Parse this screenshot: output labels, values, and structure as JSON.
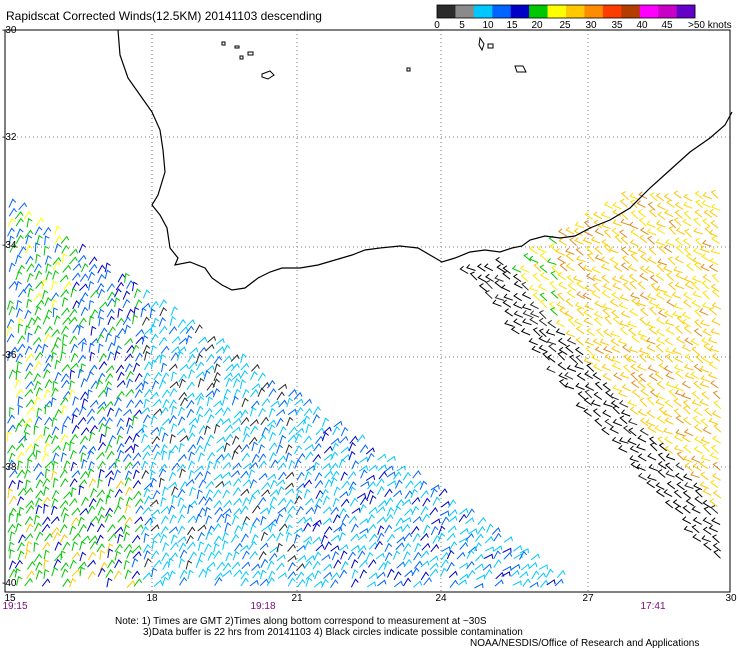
{
  "title": "Rapidscat Corrected Winds(12.5KM) 20141103 descending",
  "legend": {
    "colors": [
      "#2b2b2b",
      "#8a8a8a",
      "#00c8ff",
      "#0064ff",
      "#0000c8",
      "#00c800",
      "#ffff00",
      "#ffc800",
      "#ff8c00",
      "#ff3c00",
      "#b43c00",
      "#ff00ff",
      "#c800c8",
      "#6400c8"
    ],
    "labels": [
      "0",
      "5",
      "10",
      "15",
      "20",
      "25",
      "30",
      "35",
      "40",
      "45",
      ">50 knots"
    ]
  },
  "axes": {
    "lat_labels": [
      "-30",
      "-32",
      "-34",
      "-36",
      "-38",
      "-40"
    ],
    "lon_labels": [
      "15",
      "18",
      "21",
      "24",
      "27",
      "30"
    ],
    "time_labels": [
      "19:15",
      "19:18",
      "17:41"
    ]
  },
  "notes": {
    "line1": "Note: 1) Times are GMT 2)Times along bottom correspond to measurement at ~30S",
    "line2": "3)Data buffer is 22 hrs from 20141103 4) Black circles indicate possible contamination",
    "line3": "NOAA/NESDIS/Office of Research and Applications"
  }
}
